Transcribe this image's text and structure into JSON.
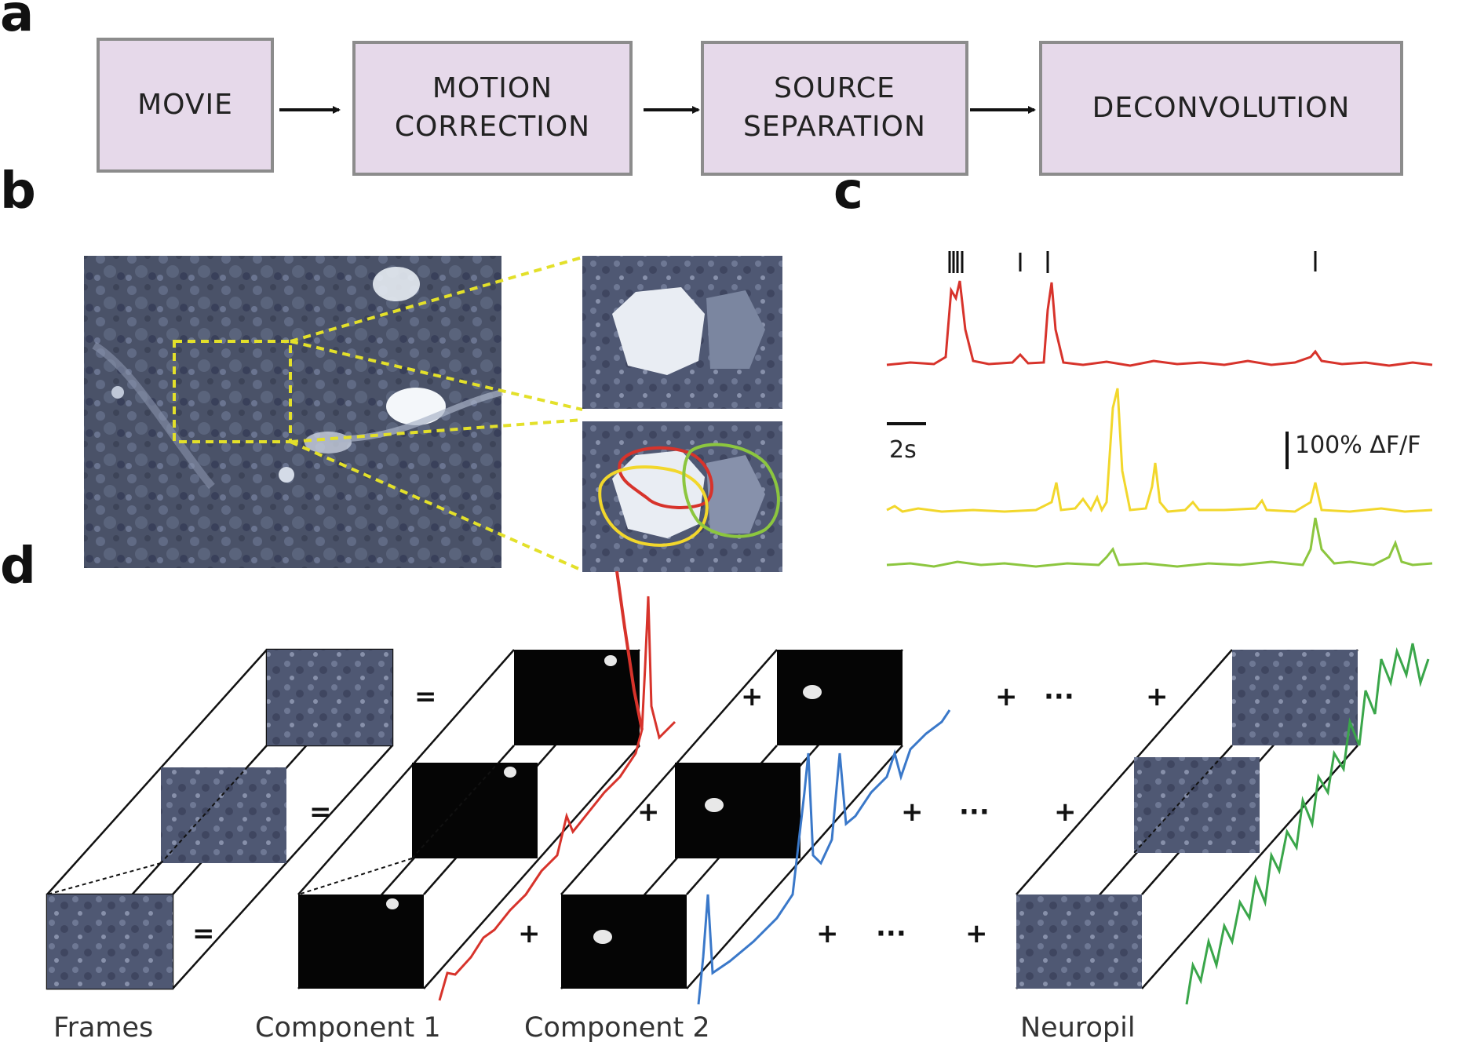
{
  "panel_a": {
    "letter": "a",
    "steps": [
      "MOVIE",
      "MOTION\nCORRECTION",
      "SOURCE\nSEPARATION",
      "DECONVOLUTION"
    ]
  },
  "panel_b": {
    "letter": "b"
  },
  "panel_c": {
    "letter": "c",
    "time_scale": "2s",
    "amplitude_scale": "100% ΔF/F",
    "trace_colors": [
      "#d7332b",
      "#f2d72c",
      "#8cc63f"
    ]
  },
  "panel_d": {
    "letter": "d",
    "operators": {
      "equals": "=",
      "plus": "+",
      "ellipsis": "···"
    },
    "labels": [
      "Frames",
      "Component 1",
      "Component 2",
      "Neuropil"
    ],
    "trace_colors": {
      "component_1": "#d7332b",
      "component_2": "#3a78c9",
      "neuropil": "#3aa64a"
    }
  }
}
